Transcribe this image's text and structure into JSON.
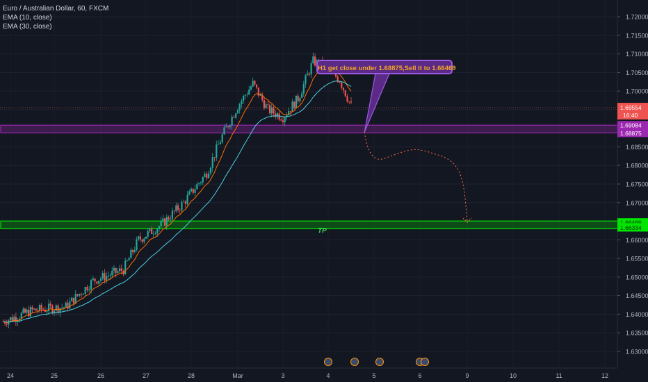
{
  "legend": {
    "symbol": "Euro / Australian Dollar, 60, FXCM",
    "ema_fast": "EMA (10, close)",
    "ema_slow": "EMA (30, close)"
  },
  "annotation": {
    "callout": "H1 get close under 1.68875,Sell it to 1.66469",
    "tp_label": "TP"
  },
  "colors": {
    "background": "#131722",
    "up": "#26a69a",
    "down": "#ef5350",
    "ema_fast": "#ff6d00",
    "ema_slow": "#4dd0e1",
    "zone_sell": "#9c27b0",
    "zone_tp": "#00e600"
  },
  "chart_data": {
    "type": "candlestick",
    "ylim": [
      1.6255,
      1.7245
    ],
    "y_ticks": [
      "1.72000",
      "1.71500",
      "1.71000",
      "1.70500",
      "1.70000",
      "1.69500",
      "1.68500",
      "1.68000",
      "1.67500",
      "1.67000",
      "1.66000",
      "1.65500",
      "1.65000",
      "1.64500",
      "1.64000",
      "1.63500",
      "1.63000"
    ],
    "x_ticks": [
      "24",
      "25",
      "26",
      "27",
      "28",
      "Mar",
      "3",
      "4",
      "5",
      "6",
      "9",
      "10",
      "11",
      "12"
    ],
    "last_price": "1.69554",
    "countdown": "16:40",
    "zones": [
      {
        "name": "sell-zone",
        "high": 1.69084,
        "low": 1.68875,
        "labels": [
          "1.69084",
          "1.68875"
        ]
      },
      {
        "name": "tp-zone",
        "high": 1.66469,
        "low": 1.66334,
        "labels": [
          "1.66469",
          "1.66334"
        ]
      }
    ],
    "trend_path_anchors": [
      {
        "date": "Mar 3 ~19:00",
        "price": 1.689
      },
      {
        "date": "Mar 4 ~06:00",
        "price": 1.682
      },
      {
        "date": "Mar 5 ~08:00",
        "price": 1.683
      },
      {
        "date": "Mar 6 00:00",
        "price": 1.6647
      }
    ],
    "price_anchors": [
      {
        "date": "Feb 23 20:00",
        "price": 1.638
      },
      {
        "date": "Feb 24 12:00",
        "price": 1.641
      },
      {
        "date": "Feb 25 06:00",
        "price": 1.642
      },
      {
        "date": "Feb 25 20:00",
        "price": 1.649
      },
      {
        "date": "Feb 26 12:00",
        "price": 1.652
      },
      {
        "date": "Feb 26 20:00",
        "price": 1.66
      },
      {
        "date": "Feb 27 08:00",
        "price": 1.664
      },
      {
        "date": "Feb 27 20:00",
        "price": 1.67
      },
      {
        "date": "Feb 28 08:00",
        "price": 1.678
      },
      {
        "date": "Feb 28 16:00",
        "price": 1.688
      },
      {
        "date": "Mar 1 00:00",
        "price": 1.696
      },
      {
        "date": "Mar 1 08:00",
        "price": 1.702
      },
      {
        "date": "Mar 1 16:00",
        "price": 1.695
      },
      {
        "date": "Mar 2 00:00",
        "price": 1.693
      },
      {
        "date": "Mar 2 08:00",
        "price": 1.698
      },
      {
        "date": "Mar 2 16:00",
        "price": 1.708
      },
      {
        "date": "Mar 3 00:00",
        "price": 1.706
      },
      {
        "date": "Mar 3 06:00",
        "price": 1.703
      },
      {
        "date": "Mar 3 12:00",
        "price": 1.696
      }
    ],
    "events_count": 5
  }
}
